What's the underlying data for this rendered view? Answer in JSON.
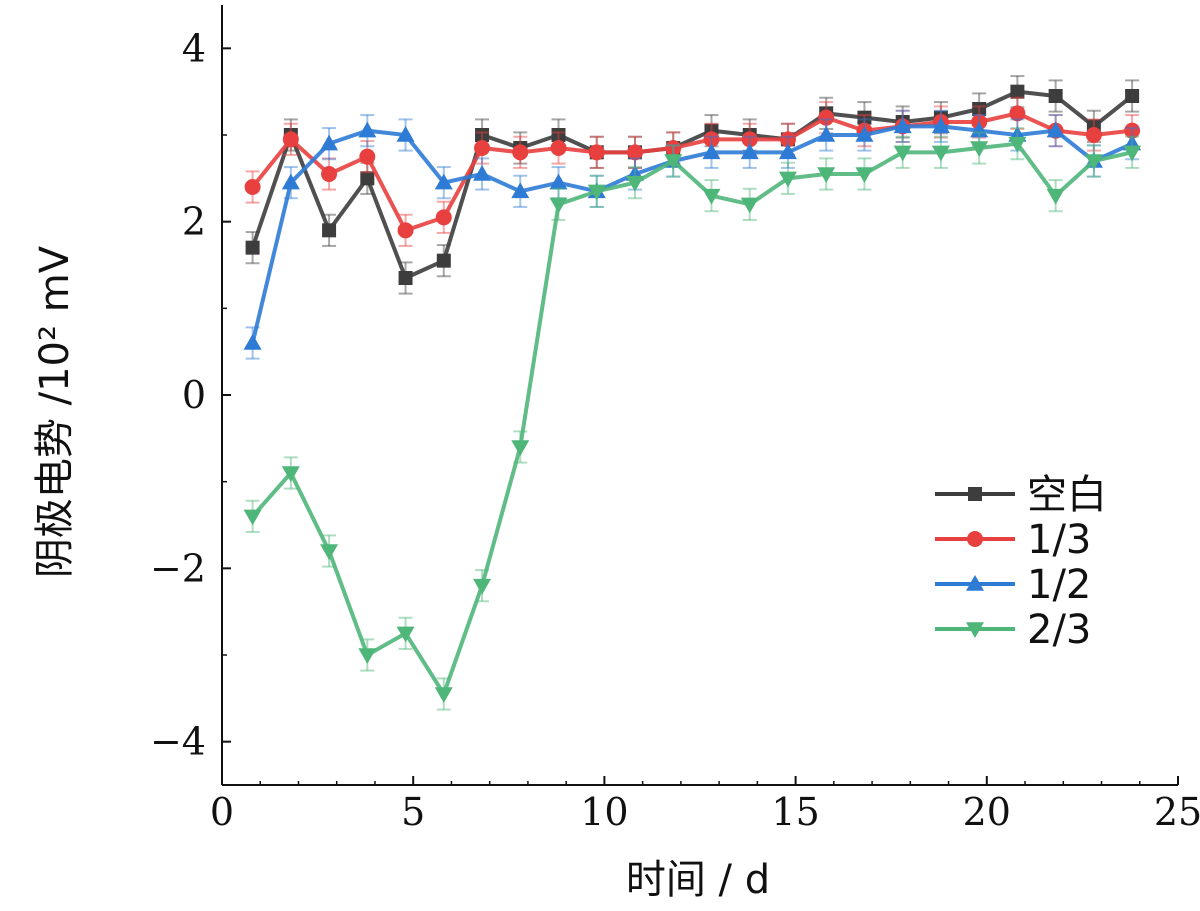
{
  "chart_data": {
    "type": "line",
    "title": "",
    "xlabel": "时间 / d",
    "ylabel": "阴极电势 /10² mV",
    "xlim": [
      0,
      25
    ],
    "ylim": [
      -4.5,
      4.5
    ],
    "xticks": [
      0,
      5,
      10,
      15,
      20,
      25
    ],
    "yticks": [
      -4,
      -2,
      0,
      2,
      4
    ],
    "xtick_labels": [
      "0",
      "5",
      "10",
      "15",
      "20",
      "25"
    ],
    "ytick_labels": [
      "−4",
      "−2",
      "0",
      "2",
      "4"
    ],
    "legend_position": "center-right",
    "x": [
      0.8,
      1.8,
      2.8,
      3.8,
      4.8,
      5.8,
      6.8,
      7.8,
      8.8,
      9.8,
      10.8,
      11.8,
      12.8,
      13.8,
      14.8,
      15.8,
      16.8,
      17.8,
      18.8,
      19.8,
      20.8,
      21.8,
      22.8,
      23.8
    ],
    "series": [
      {
        "name": "空白",
        "color": "#3d3d3d",
        "marker": "square",
        "values": [
          1.7,
          3.0,
          1.9,
          2.5,
          1.35,
          1.55,
          3.0,
          2.85,
          3.0,
          2.8,
          2.8,
          2.85,
          3.05,
          3.0,
          2.95,
          3.25,
          3.2,
          3.15,
          3.2,
          3.3,
          3.5,
          3.45,
          3.1,
          3.45
        ]
      },
      {
        "name": "1/3",
        "color": "#e8403f",
        "marker": "circle",
        "values": [
          2.4,
          2.95,
          2.55,
          2.75,
          1.9,
          2.05,
          2.85,
          2.8,
          2.85,
          2.8,
          2.8,
          2.85,
          2.95,
          2.95,
          2.95,
          3.2,
          3.05,
          3.1,
          3.15,
          3.15,
          3.25,
          3.05,
          3.0,
          3.05
        ]
      },
      {
        "name": "1/2",
        "color": "#2e7bd6",
        "marker": "triangle-up",
        "values": [
          0.6,
          2.45,
          2.9,
          3.05,
          3.0,
          2.45,
          2.55,
          2.35,
          2.45,
          2.35,
          2.55,
          2.7,
          2.8,
          2.8,
          2.8,
          3.0,
          3.0,
          3.1,
          3.1,
          3.05,
          3.0,
          3.05,
          2.7,
          2.9
        ]
      },
      {
        "name": "2/3",
        "color": "#4fb67a",
        "marker": "triangle-down",
        "values": [
          -1.4,
          -0.9,
          -1.8,
          -3.0,
          -2.75,
          -3.45,
          -2.2,
          -0.6,
          2.2,
          2.35,
          2.45,
          2.7,
          2.3,
          2.2,
          2.5,
          2.55,
          2.55,
          2.8,
          2.8,
          2.85,
          2.9,
          2.3,
          2.7,
          2.8
        ]
      }
    ]
  }
}
